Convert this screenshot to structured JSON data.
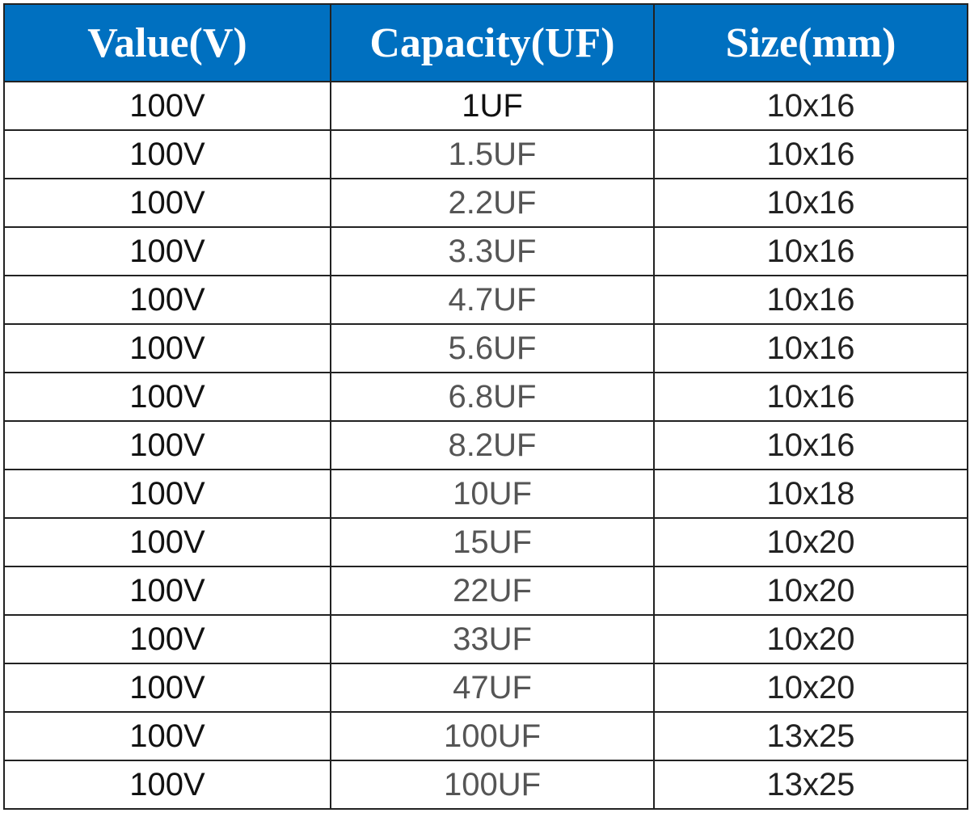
{
  "table": {
    "header": [
      "Value(V)",
      "Capacity(UF)",
      "Size(mm)"
    ],
    "rows": [
      [
        "100V",
        "1UF",
        "10x16"
      ],
      [
        "100V",
        "1.5UF",
        "10x16"
      ],
      [
        "100V",
        "2.2UF",
        "10x16"
      ],
      [
        "100V",
        "3.3UF",
        "10x16"
      ],
      [
        "100V",
        "4.7UF",
        "10x16"
      ],
      [
        "100V",
        "5.6UF",
        "10x16"
      ],
      [
        "100V",
        "6.8UF",
        "10x16"
      ],
      [
        "100V",
        "8.2UF",
        "10x16"
      ],
      [
        "100V",
        "10UF",
        "10x18"
      ],
      [
        "100V",
        "15UF",
        "10x20"
      ],
      [
        "100V",
        "22UF",
        "10x20"
      ],
      [
        "100V",
        "33UF",
        "10x20"
      ],
      [
        "100V",
        "47UF",
        "10x20"
      ],
      [
        "100V",
        "100UF",
        "13x25"
      ],
      [
        "100V",
        "100UF",
        "13x25"
      ]
    ]
  }
}
